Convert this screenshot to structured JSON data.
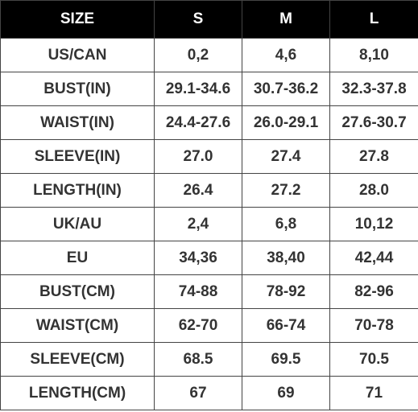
{
  "table": {
    "header": [
      "SIZE",
      "S",
      "M",
      "L"
    ],
    "rows": [
      [
        "US/CAN",
        "0,2",
        "4,6",
        "8,10"
      ],
      [
        "BUST(IN)",
        "29.1-34.6",
        "30.7-36.2",
        "32.3-37.8"
      ],
      [
        "WAIST(IN)",
        "24.4-27.6",
        "26.0-29.1",
        "27.6-30.7"
      ],
      [
        "SLEEVE(IN)",
        "27.0",
        "27.4",
        "27.8"
      ],
      [
        "LENGTH(IN)",
        "26.4",
        "27.2",
        "28.0"
      ],
      [
        "UK/AU",
        "2,4",
        "6,8",
        "10,12"
      ],
      [
        "EU",
        "34,36",
        "38,40",
        "42,44"
      ],
      [
        "BUST(CM)",
        "74-88",
        "78-92",
        "82-96"
      ],
      [
        "WAIST(CM)",
        "62-70",
        "66-74",
        "70-78"
      ],
      [
        "SLEEVE(CM)",
        "68.5",
        "69.5",
        "70.5"
      ],
      [
        "LENGTH(CM)",
        "67",
        "69",
        "71"
      ]
    ]
  }
}
